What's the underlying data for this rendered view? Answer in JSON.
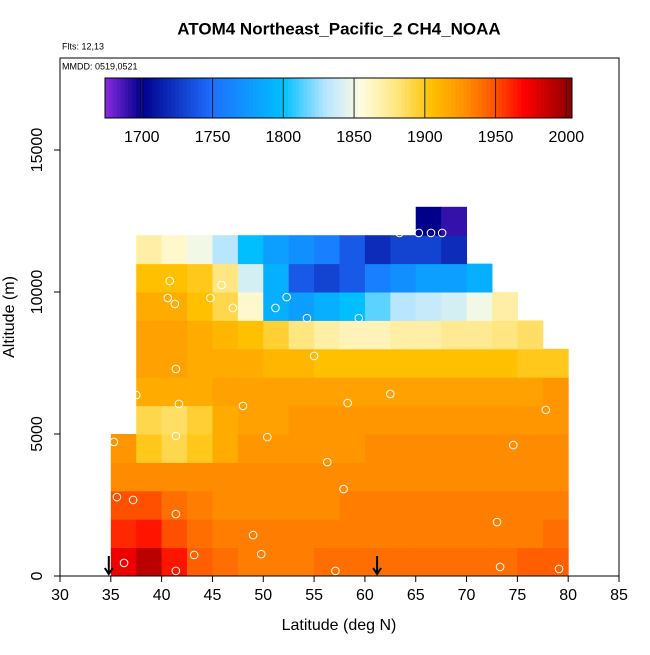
{
  "chart_data": {
    "type": "heatmap",
    "title": "ATOM4 Northeast_Pacific_2 CH4_NOAA",
    "annotations": [
      "Flts: 12,13",
      "MMDD: 0519,0521"
    ],
    "xlabel": "Latitude (deg N)",
    "ylabel": "Altitude (m)",
    "xlim": [
      30,
      85
    ],
    "xticks": [
      30,
      35,
      40,
      45,
      50,
      55,
      60,
      65,
      70,
      75,
      80,
      85
    ],
    "ylim": [
      0,
      18240
    ],
    "yticks": [
      0,
      5000,
      10000,
      15000
    ],
    "x_bins": [
      35,
      37.5,
      40,
      42.5,
      45,
      47.5,
      50,
      52.5,
      55,
      57.5,
      60,
      62.5,
      65,
      67.5,
      70,
      72.5,
      75,
      77.5,
      80
    ],
    "y_bins": [
      0,
      1000,
      2000,
      3000,
      4000,
      5000,
      6000,
      7000,
      8000,
      9000,
      10000,
      11000,
      12000,
      13000
    ],
    "z": [
      [
        1975,
        1990,
        1965,
        1945,
        1940,
        1935,
        1935,
        1935,
        1940,
        1940,
        1940,
        1940,
        1940,
        1940,
        1940,
        1940,
        1945,
        1945
      ],
      [
        1960,
        1965,
        1950,
        1940,
        1935,
        1935,
        1935,
        1935,
        1935,
        1935,
        1935,
        1935,
        1935,
        1935,
        1935,
        1935,
        1935,
        1940
      ],
      [
        1950,
        1950,
        1940,
        1935,
        1930,
        1930,
        1930,
        1930,
        1930,
        1935,
        1935,
        1935,
        1935,
        1935,
        1935,
        1935,
        1935,
        1935
      ],
      [
        1930,
        1930,
        1930,
        1930,
        1930,
        1930,
        1930,
        1930,
        1930,
        1930,
        1930,
        1930,
        1930,
        1930,
        1930,
        1930,
        1930,
        1930
      ],
      [
        1925,
        1900,
        1890,
        1900,
        1915,
        1925,
        1925,
        1925,
        1925,
        1925,
        1930,
        1930,
        1930,
        1930,
        1930,
        1930,
        1930,
        1930
      ],
      [
        null,
        1890,
        1885,
        1895,
        1915,
        1920,
        1920,
        1925,
        1925,
        1925,
        1925,
        1925,
        1925,
        1925,
        1925,
        1925,
        1925,
        1925
      ],
      [
        null,
        1915,
        1915,
        1915,
        1920,
        1920,
        1920,
        1920,
        1920,
        1920,
        1920,
        1920,
        1920,
        1920,
        1920,
        1920,
        1920,
        1925
      ],
      [
        null,
        1920,
        1920,
        1915,
        1915,
        1915,
        1910,
        1910,
        1905,
        1905,
        1905,
        1905,
        1905,
        1905,
        1905,
        1905,
        1900,
        1900
      ],
      [
        null,
        1920,
        1920,
        1915,
        1910,
        1905,
        1895,
        1880,
        1870,
        1865,
        1865,
        1870,
        1870,
        1875,
        1875,
        1880,
        1885,
        null
      ],
      [
        null,
        1915,
        1915,
        1905,
        1890,
        1860,
        1790,
        1780,
        1790,
        1800,
        1815,
        1830,
        1835,
        1840,
        1850,
        1870,
        null,
        null
      ],
      [
        null,
        1905,
        1905,
        1900,
        1880,
        1840,
        1790,
        1740,
        1730,
        1740,
        1760,
        1770,
        1780,
        1780,
        1790,
        null,
        null,
        null
      ],
      [
        null,
        1870,
        1860,
        1850,
        1830,
        1800,
        1780,
        1770,
        1760,
        1740,
        1720,
        1730,
        1730,
        1720,
        null,
        null,
        null,
        null
      ],
      [
        null,
        null,
        null,
        null,
        null,
        null,
        null,
        null,
        null,
        null,
        null,
        null,
        1700,
        1690,
        null,
        null,
        null,
        null
      ]
    ],
    "colorbar_lim": [
      1674,
      2004
    ],
    "colorbar_ticks": [
      1700,
      1750,
      1800,
      1850,
      1900,
      1950,
      2000
    ],
    "colormap": [
      {
        "value": 1674,
        "color": "#8a2be2"
      },
      {
        "value": 1700,
        "color": "#00008b"
      },
      {
        "value": 1750,
        "color": "#1e6fff"
      },
      {
        "value": 1800,
        "color": "#00bfff"
      },
      {
        "value": 1830,
        "color": "#b8e6ff"
      },
      {
        "value": 1855,
        "color": "#fffce0"
      },
      {
        "value": 1880,
        "color": "#ffe680"
      },
      {
        "value": 1905,
        "color": "#ffc000"
      },
      {
        "value": 1930,
        "color": "#ff8c00"
      },
      {
        "value": 1950,
        "color": "#ff5000"
      },
      {
        "value": 1970,
        "color": "#ff0000"
      },
      {
        "value": 2004,
        "color": "#8b0000"
      }
    ],
    "points": {
      "x": [
        63.4,
        65.3,
        66.5,
        67.6,
        40.8,
        40.6,
        41.3,
        44.8,
        45.9,
        47.0,
        52.3,
        51.2,
        54.3,
        59.4,
        55.0,
        41.4,
        37.5,
        41.7,
        48.0,
        58.3,
        62.5,
        77.8,
        41.4,
        50.4,
        35.3,
        74.6,
        56.3,
        57.9,
        35.6,
        37.2,
        41.4,
        73.0,
        49.0,
        43.2,
        49.8,
        36.3,
        41.4,
        57.1,
        73.3,
        79.1
      ],
      "y": [
        12080,
        12080,
        12080,
        12080,
        10390,
        9790,
        9580,
        9790,
        10250,
        9440,
        9820,
        9440,
        9080,
        9080,
        7750,
        7290,
        6370,
        6060,
        5990,
        6090,
        6410,
        5850,
        4930,
        4890,
        4720,
        4610,
        4010,
        3060,
        2780,
        2680,
        2180,
        1900,
        1440,
        740,
        770,
        460,
        180,
        180,
        320,
        250
      ],
      "color": "#ffffff"
    },
    "arrows_x": [
      34.8,
      61.2
    ]
  }
}
